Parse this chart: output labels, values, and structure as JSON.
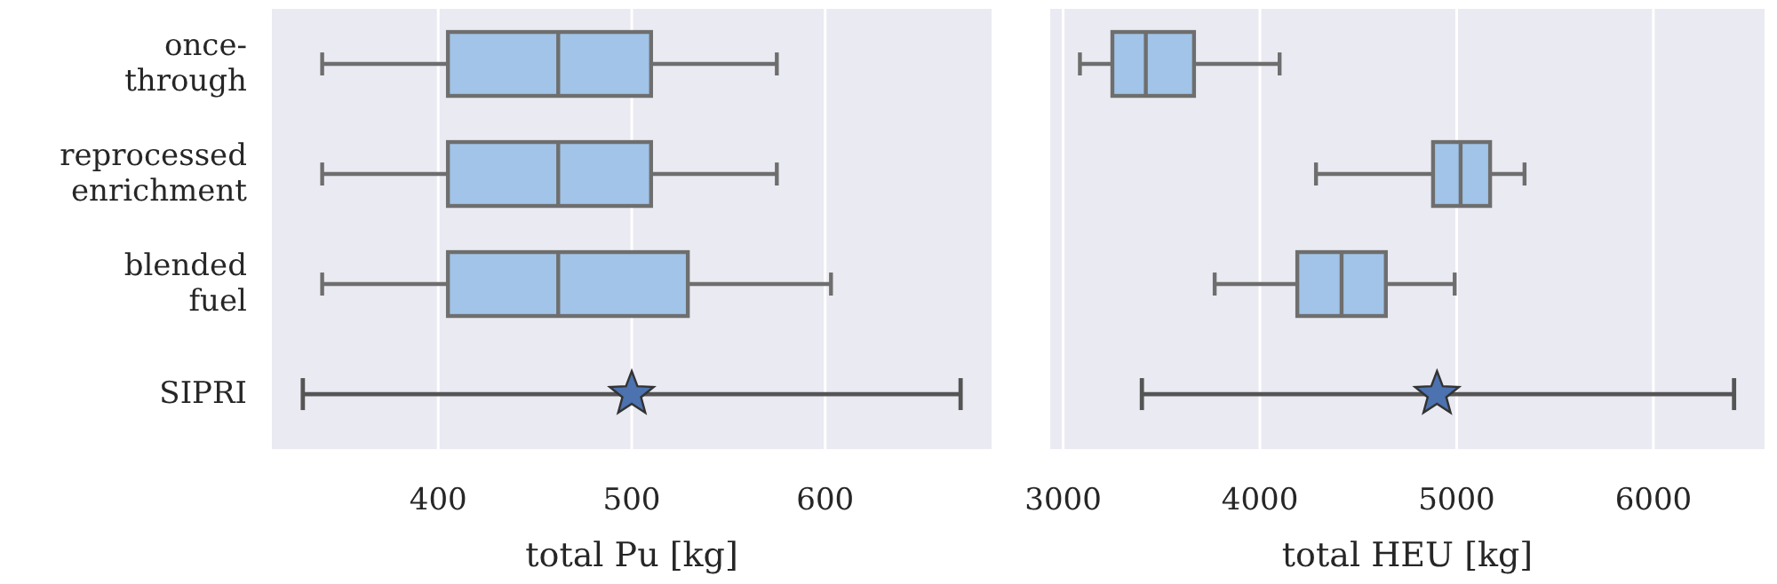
{
  "chart_data": [
    {
      "type": "box",
      "orientation": "horizontal",
      "categories": [
        "once-\nthrough",
        "reprocessed\nenrichment",
        "blended\nfuel",
        "SIPRI"
      ],
      "xlabel": "total Pu [kg]",
      "xlim": [
        314,
        686
      ],
      "xticks": [
        400,
        500,
        600
      ],
      "grid": "x",
      "legend": false,
      "series": [
        {
          "type": "box",
          "color": "#a1c4e8",
          "boxes": [
            {
              "low": 340,
              "q1": 405,
              "median": 462,
              "q3": 510,
              "high": 575
            },
            {
              "low": 340,
              "q1": 405,
              "median": 462,
              "q3": 510,
              "high": 575
            },
            {
              "low": 340,
              "q1": 405,
              "median": 462,
              "q3": 529,
              "high": 603
            },
            null
          ]
        },
        {
          "type": "scatter",
          "color": "#4c72b0",
          "marker": "star",
          "values": [
            null,
            null,
            null,
            500
          ],
          "errors": [
            null,
            null,
            null,
            [
              330,
              670
            ]
          ]
        }
      ]
    },
    {
      "type": "box",
      "orientation": "horizontal",
      "categories": [
        null,
        null,
        null,
        null
      ],
      "xlabel": "total HEU [kg]",
      "xlim": [
        2934,
        6565
      ],
      "xticks": [
        3000,
        4000,
        5000,
        6000
      ],
      "grid": "x",
      "legend": false,
      "tick_labels": "x",
      "series": [
        {
          "type": "box",
          "color": "#a1c4e8",
          "boxes": [
            {
              "low": 3085,
              "q1": 3250,
              "median": 3420,
              "q3": 3665,
              "high": 4100
            },
            {
              "low": 4285,
              "q1": 4880,
              "median": 5020,
              "q3": 5170,
              "high": 5345
            },
            {
              "low": 3770,
              "q1": 4190,
              "median": 4415,
              "q3": 4640,
              "high": 4990
            },
            null
          ]
        },
        {
          "type": "scatter",
          "color": "#4c72b0",
          "marker": "star",
          "values": [
            null,
            null,
            null,
            4900
          ],
          "errors": [
            null,
            null,
            null,
            [
              3400,
              6410
            ]
          ]
        }
      ]
    }
  ]
}
